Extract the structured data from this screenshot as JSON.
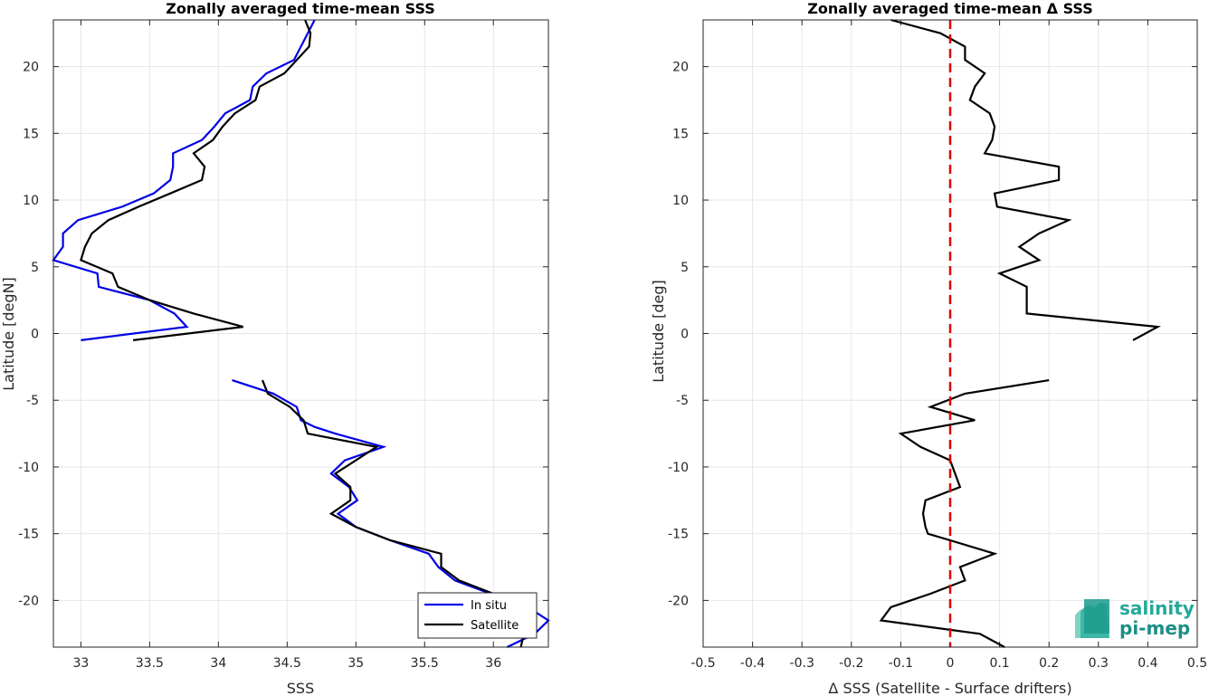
{
  "chart_data": [
    {
      "type": "line",
      "title": "Zonally averaged time-mean SSS",
      "xlabel": "SSS",
      "ylabel": "Latitude [degN]",
      "xlim": [
        32.8,
        36.4
      ],
      "ylim": [
        -23.5,
        23.5
      ],
      "xticks": [
        33,
        33.5,
        34,
        34.5,
        35,
        35.5,
        36
      ],
      "yticks": [
        20,
        15,
        10,
        5,
        0,
        -5,
        -10,
        -15,
        -20
      ],
      "grid": true,
      "legend": "bottom-right",
      "series": [
        {
          "name": "In situ",
          "color": "#0000e6",
          "segments": [
            [
              [
                34.7,
                23.5
              ],
              [
                34.65,
                22.5
              ],
              [
                34.55,
                20.5
              ],
              [
                34.35,
                19.5
              ],
              [
                34.25,
                18.5
              ],
              [
                34.23,
                17.5
              ],
              [
                34.05,
                16.5
              ],
              [
                33.97,
                15.5
              ],
              [
                33.88,
                14.5
              ],
              [
                33.67,
                13.5
              ],
              [
                33.67,
                12.5
              ],
              [
                33.65,
                11.5
              ],
              [
                33.53,
                10.5
              ],
              [
                33.3,
                9.5
              ],
              [
                32.98,
                8.5
              ],
              [
                32.87,
                7.5
              ],
              [
                32.87,
                6.5
              ],
              [
                32.8,
                5.5
              ],
              [
                33.12,
                4.5
              ],
              [
                33.13,
                3.5
              ],
              [
                33.5,
                2.5
              ],
              [
                33.68,
                1.5
              ],
              [
                33.77,
                0.5
              ],
              [
                33.0,
                -0.5
              ]
            ],
            [
              [
                34.1,
                -3.5
              ],
              [
                34.4,
                -4.5
              ],
              [
                34.57,
                -5.5
              ],
              [
                34.6,
                -6.5
              ],
              [
                34.7,
                -7.0
              ],
              [
                34.85,
                -7.5
              ],
              [
                35.2,
                -8.5
              ],
              [
                34.92,
                -9.5
              ],
              [
                34.82,
                -10.5
              ],
              [
                34.95,
                -11.5
              ],
              [
                35.01,
                -12.5
              ],
              [
                34.87,
                -13.5
              ],
              [
                35.0,
                -14.5
              ],
              [
                35.25,
                -15.5
              ],
              [
                35.53,
                -16.5
              ],
              [
                35.6,
                -17.5
              ],
              [
                35.72,
                -18.5
              ],
              [
                35.98,
                -19.5
              ],
              [
                36.25,
                -20.5
              ],
              [
                36.4,
                -21.5
              ],
              [
                36.3,
                -22.5
              ],
              [
                36.1,
                -23.5
              ]
            ]
          ]
        },
        {
          "name": "Satellite",
          "color": "#000000",
          "segments": [
            [
              [
                34.63,
                23.5
              ],
              [
                34.67,
                22.5
              ],
              [
                34.66,
                21.5
              ],
              [
                34.48,
                19.5
              ],
              [
                34.3,
                18.5
              ],
              [
                34.27,
                17.5
              ],
              [
                34.12,
                16.5
              ],
              [
                34.03,
                15.5
              ],
              [
                33.96,
                14.5
              ],
              [
                33.82,
                13.5
              ],
              [
                33.9,
                12.5
              ],
              [
                33.88,
                11.5
              ],
              [
                33.65,
                10.5
              ],
              [
                33.42,
                9.5
              ],
              [
                33.2,
                8.5
              ],
              [
                33.08,
                7.5
              ],
              [
                33.03,
                6.5
              ],
              [
                33.0,
                5.5
              ],
              [
                33.23,
                4.5
              ],
              [
                33.27,
                3.5
              ],
              [
                33.5,
                2.5
              ],
              [
                33.82,
                1.5
              ],
              [
                34.18,
                0.5
              ],
              [
                33.38,
                -0.5
              ]
            ],
            [
              [
                34.32,
                -3.5
              ],
              [
                34.36,
                -4.5
              ],
              [
                34.52,
                -5.5
              ],
              [
                34.62,
                -6.5
              ],
              [
                34.65,
                -7.5
              ],
              [
                35.15,
                -8.5
              ],
              [
                34.85,
                -10.5
              ],
              [
                34.96,
                -11.5
              ],
              [
                34.96,
                -12.5
              ],
              [
                34.82,
                -13.5
              ],
              [
                35.0,
                -14.5
              ],
              [
                35.25,
                -15.5
              ],
              [
                35.62,
                -16.5
              ],
              [
                35.62,
                -17.5
              ],
              [
                35.75,
                -18.5
              ],
              [
                36.0,
                -19.5
              ],
              [
                36.18,
                -20.5
              ],
              [
                36.3,
                -21.5
              ],
              [
                36.22,
                -22.5
              ],
              [
                36.2,
                -23.5
              ]
            ]
          ]
        }
      ]
    },
    {
      "type": "line",
      "title": "Zonally averaged time-mean Δ SSS",
      "xlabel": "Δ SSS (Satellite - Surface drifters)",
      "ylabel": "Latitude [deg]",
      "xlim": [
        -0.5,
        0.5
      ],
      "ylim": [
        -23.5,
        23.5
      ],
      "xticks": [
        -0.5,
        -0.4,
        -0.3,
        -0.2,
        -0.1,
        0,
        0.1,
        0.2,
        0.3,
        0.4,
        0.5
      ],
      "yticks": [
        20,
        15,
        10,
        5,
        0,
        -5,
        -10,
        -15,
        -20
      ],
      "grid": true,
      "reference_line": {
        "x": 0,
        "color": "#e00000",
        "style": "dashed"
      },
      "series": [
        {
          "color": "#000000",
          "segments": [
            [
              [
                -0.12,
                23.5
              ],
              [
                -0.02,
                22.5
              ],
              [
                0.03,
                21.5
              ],
              [
                0.03,
                20.5
              ],
              [
                0.07,
                19.5
              ],
              [
                0.05,
                18.5
              ],
              [
                0.04,
                17.5
              ],
              [
                0.08,
                16.5
              ],
              [
                0.09,
                15.5
              ],
              [
                0.085,
                14.5
              ],
              [
                0.07,
                13.5
              ],
              [
                0.22,
                12.5
              ],
              [
                0.22,
                11.5
              ],
              [
                0.09,
                10.5
              ],
              [
                0.095,
                9.5
              ],
              [
                0.24,
                8.5
              ],
              [
                0.18,
                7.5
              ],
              [
                0.14,
                6.5
              ],
              [
                0.18,
                5.5
              ],
              [
                0.1,
                4.5
              ],
              [
                0.155,
                3.5
              ],
              [
                0.155,
                2.5
              ],
              [
                0.155,
                1.5
              ],
              [
                0.42,
                0.5
              ],
              [
                0.37,
                -0.5
              ]
            ],
            [
              [
                0.2,
                -3.5
              ],
              [
                0.03,
                -4.5
              ],
              [
                -0.04,
                -5.5
              ],
              [
                0.05,
                -6.5
              ],
              [
                -0.1,
                -7.5
              ],
              [
                -0.06,
                -8.5
              ],
              [
                0.0,
                -9.5
              ],
              [
                0.02,
                -11.5
              ],
              [
                -0.05,
                -12.5
              ],
              [
                -0.055,
                -13.5
              ],
              [
                -0.05,
                -14.5
              ],
              [
                -0.045,
                -15.0
              ],
              [
                0.0,
                -15.5
              ],
              [
                0.09,
                -16.5
              ],
              [
                0.02,
                -17.5
              ],
              [
                0.03,
                -18.5
              ],
              [
                -0.04,
                -19.5
              ],
              [
                -0.12,
                -20.5
              ],
              [
                -0.14,
                -21.5
              ],
              [
                0.06,
                -22.5
              ],
              [
                0.11,
                -23.5
              ]
            ]
          ]
        }
      ]
    }
  ],
  "logo": {
    "line1": "salinity",
    "line2": "pi-mep"
  }
}
